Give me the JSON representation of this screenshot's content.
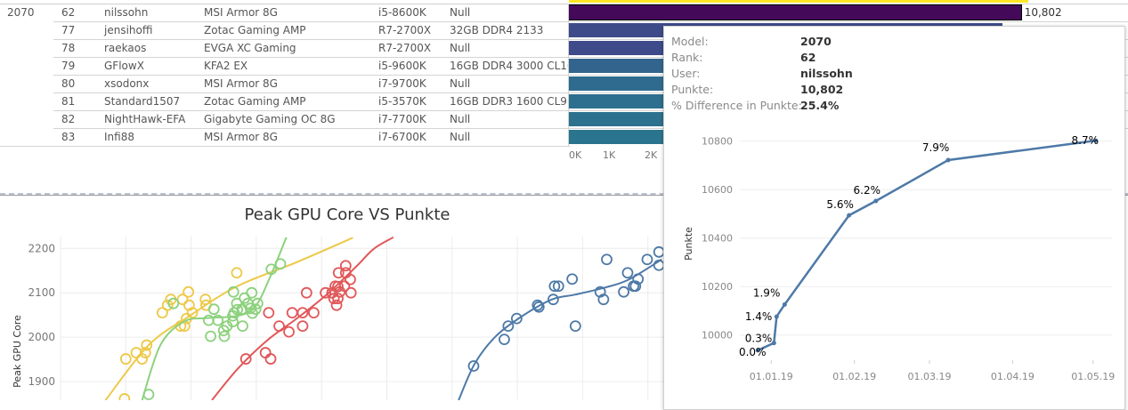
{
  "table": {
    "model_group": "2070",
    "rows": [
      {
        "rank": "62",
        "user": "nilssohn",
        "card": "MSI Armor 8G",
        "cpu": "i5-8600K",
        "ram": "Null",
        "value": 10802,
        "value_label": "10,802",
        "color": "#45095A",
        "selected": true
      },
      {
        "rank": "77",
        "user": "jensihoffi",
        "card": "Zotac Gaming AMP",
        "cpu": "R7-2700X",
        "ram": "32GB DDR4 2133",
        "value": 10360,
        "color": "#3D4B89"
      },
      {
        "rank": "78",
        "user": "raekaos",
        "card": "EVGA XC Gaming",
        "cpu": "R7-2700X",
        "ram": "Null",
        "value": null,
        "color": "#3E4A89"
      },
      {
        "rank": "79",
        "user": "GFlowX",
        "card": "KFA2 EX",
        "cpu": "i5-9600K",
        "ram": "16GB DDR4 3000 CL16",
        "value": null,
        "color": "#33648D"
      },
      {
        "rank": "80",
        "user": "xsodonx",
        "card": "MSI Armor 8G",
        "cpu": "i7-9700K",
        "ram": "Null",
        "value": null,
        "color": "#2F6B8E"
      },
      {
        "rank": "81",
        "user": "Standard1507",
        "card": "Zotac Gaming AMP",
        "cpu": "i5-3570K",
        "ram": "16GB DDR3 1600 CL9",
        "value": null,
        "color": "#2E6E8E"
      },
      {
        "rank": "82",
        "user": "NightHawk-EFA",
        "card": "Gigabyte Gaming OC 8G",
        "cpu": "i7-7700K",
        "ram": "Null",
        "value": null,
        "color": "#2C718E"
      },
      {
        "rank": "83",
        "user": "Infi88",
        "card": "MSI Armor 8G",
        "cpu": "i7-6700K",
        "ram": "Null",
        "value": null,
        "color": "#2B748E"
      }
    ],
    "partial_row_bar_color": "#FDE725",
    "axis_ticks": [
      "0K",
      "1K",
      "2K"
    ]
  },
  "tooltip": {
    "fields": [
      {
        "label": "Model:",
        "value": "2070"
      },
      {
        "label": "Rank:",
        "value": "62"
      },
      {
        "label": "User:",
        "value": "nilssohn"
      },
      {
        "label": "Punkte:",
        "value": "10,802"
      },
      {
        "label": "% Difference in Punkte:",
        "value": "25.4%"
      }
    ]
  },
  "chart_data": [
    {
      "type": "scatter",
      "title": "Peak GPU Core VS Punkte",
      "xlabel": "",
      "ylabel": "Peak GPU Core",
      "y_ticks": [
        "2200",
        "2100",
        "2000",
        "1900"
      ],
      "ylim": [
        1855,
        2225
      ],
      "grid": true,
      "trend_lines": true,
      "series": [
        {
          "color": "#EDC948",
          "points": [
            [
              1.0,
              1951
            ],
            [
              1.16,
              1965
            ],
            [
              1.25,
              1951
            ],
            [
              1.3,
              1965
            ],
            [
              1.32,
              1982
            ],
            [
              1.56,
              2055
            ],
            [
              1.64,
              2072
            ],
            [
              1.69,
              2085
            ],
            [
              1.84,
              2025
            ],
            [
              1.9,
              2025
            ],
            [
              1.87,
              2085
            ],
            [
              1.96,
              2102
            ],
            [
              1.97,
              2072
            ],
            [
              2.02,
              2055
            ],
            [
              1.93,
              2042
            ],
            [
              2.22,
              2085
            ],
            [
              2.23,
              2072
            ],
            [
              2.7,
              2145
            ],
            [
              0.98,
              1861
            ]
          ],
          "trend": [
            [
              0.69,
              1858
            ],
            [
              1.35,
              1982
            ],
            [
              1.98,
              2048
            ],
            [
              2.71,
              2115
            ],
            [
              3.62,
              2169
            ],
            [
              4.48,
              2224
            ]
          ]
        },
        {
          "color": "#8CD17D",
          "points": [
            [
              1.73,
              2076
            ],
            [
              1.35,
              1871
            ],
            [
              2.3,
              2002
            ],
            [
              2.27,
              2038
            ],
            [
              2.35,
              2063
            ],
            [
              2.41,
              2038
            ],
            [
              2.5,
              2015
            ],
            [
              2.51,
              2002
            ],
            [
              2.55,
              2025
            ],
            [
              2.65,
              2102
            ],
            [
              2.7,
              2076
            ],
            [
              2.64,
              2048
            ],
            [
              2.66,
              2055
            ],
            [
              2.71,
              2062
            ],
            [
              2.78,
              2063
            ],
            [
              2.79,
              2025
            ],
            [
              2.64,
              2035
            ],
            [
              2.82,
              2088
            ],
            [
              2.87,
              2076
            ],
            [
              2.93,
              2100
            ],
            [
              2.94,
              2054
            ],
            [
              2.91,
              2065
            ],
            [
              2.99,
              2063
            ],
            [
              3.02,
              2076
            ],
            [
              3.23,
              2153
            ],
            [
              3.37,
              2165
            ]
          ],
          "trend": [
            [
              1.25,
              1858
            ],
            [
              1.53,
              1982
            ],
            [
              1.89,
              2035
            ],
            [
              2.25,
              2043
            ],
            [
              2.71,
              2048
            ],
            [
              2.98,
              2068
            ],
            [
              3.21,
              2135
            ],
            [
              3.46,
              2225
            ]
          ]
        },
        {
          "color": "#E15759",
          "points": [
            [
              2.84,
              1951
            ],
            [
              3.14,
              1965
            ],
            [
              3.22,
              1951
            ],
            [
              3.19,
              2055
            ],
            [
              3.35,
              2025
            ],
            [
              3.5,
              2012
            ],
            [
              3.55,
              2055
            ],
            [
              3.71,
              2055
            ],
            [
              3.71,
              2025
            ],
            [
              3.77,
              2100
            ],
            [
              3.88,
              2055
            ],
            [
              4.06,
              2100
            ],
            [
              4.16,
              2100
            ],
            [
              4.19,
              2087
            ],
            [
              4.21,
              2115
            ],
            [
              4.23,
              2072
            ],
            [
              4.25,
              2087
            ],
            [
              4.25,
              2114
            ],
            [
              4.26,
              2145
            ],
            [
              4.28,
              2102
            ],
            [
              4.35,
              2115
            ],
            [
              4.37,
              2145
            ],
            [
              4.37,
              2161
            ],
            [
              4.44,
              2130
            ],
            [
              4.45,
              2100
            ]
          ],
          "trend": [
            [
              2.32,
              1858
            ],
            [
              2.71,
              1928
            ],
            [
              3.16,
              1992
            ],
            [
              3.62,
              2042
            ],
            [
              4.07,
              2095
            ],
            [
              4.53,
              2159
            ],
            [
              4.8,
              2199
            ],
            [
              5.1,
              2225
            ]
          ]
        },
        {
          "color": "#4E79A7",
          "points": [
            [
              6.33,
              1935
            ],
            [
              6.8,
              1995
            ],
            [
              6.86,
              2025
            ],
            [
              6.99,
              2042
            ],
            [
              7.31,
              2072
            ],
            [
              7.33,
              2068
            ],
            [
              7.55,
              2085
            ],
            [
              7.57,
              2115
            ],
            [
              7.63,
              2115
            ],
            [
              7.84,
              2131
            ],
            [
              7.89,
              2025
            ],
            [
              8.27,
              2102
            ],
            [
              8.32,
              2085
            ],
            [
              8.37,
              2175
            ],
            [
              8.63,
              2102
            ],
            [
              8.69,
              2145
            ],
            [
              8.78,
              2115
            ],
            [
              8.81,
              2115
            ],
            [
              8.85,
              2131
            ],
            [
              8.99,
              2175
            ],
            [
              9.17,
              2192
            ],
            [
              9.17,
              2162
            ]
          ],
          "trend": [
            [
              6.1,
              1858
            ],
            [
              6.35,
              1941
            ],
            [
              6.67,
              2002
            ],
            [
              7.08,
              2048
            ],
            [
              7.53,
              2085
            ],
            [
              7.89,
              2096
            ],
            [
              8.35,
              2112
            ],
            [
              8.71,
              2130
            ],
            [
              9.21,
              2175
            ]
          ]
        }
      ]
    },
    {
      "type": "line",
      "xlabel": "",
      "ylabel": "Punkte",
      "y_ticks": [
        "10800",
        "10600",
        "10400",
        "10200",
        "10000"
      ],
      "x_ticks": [
        "01.01.19",
        "01.02.19",
        "01.03.19",
        "01.04.19",
        "01.05.19"
      ],
      "grid": true,
      "color": "#4E79A7",
      "points": [
        {
          "date": "2018-12-27",
          "value": 9937,
          "label": "0.0%"
        },
        {
          "date": "2019-01-02",
          "value": 9967,
          "label": "0.3%"
        },
        {
          "date": "2019-01-03",
          "value": 10076,
          "label": "1.4%"
        },
        {
          "date": "2019-01-06",
          "value": 10126,
          "label": "1.9%"
        },
        {
          "date": "2019-01-30",
          "value": 10494,
          "label": "5.6%"
        },
        {
          "date": "2019-02-09",
          "value": 10553,
          "label": "6.2%"
        },
        {
          "date": "2019-03-08",
          "value": 10722,
          "label": "7.9%"
        },
        {
          "date": "2019-05-02",
          "value": 10802,
          "label": "8.7%"
        }
      ]
    }
  ]
}
